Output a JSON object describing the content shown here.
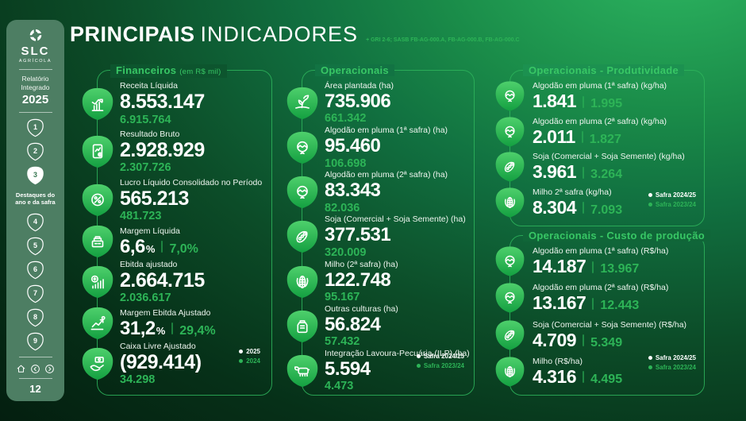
{
  "header": {
    "title_bold": "PRINCIPAIS",
    "title_light": "INDICADORES",
    "gri_ref": "+ GRI 2-6; SASB FB-AG-000.A, FB-AG-000.B, FB-AG-000.C"
  },
  "sidebar": {
    "logo_text": "SLC",
    "logo_sub": "AGRÍCOLA",
    "report_line1": "Relatório",
    "report_line2": "Integrado",
    "report_year": "2025",
    "chapters": [
      "1",
      "2",
      "3",
      "4",
      "5",
      "6",
      "7",
      "8",
      "9"
    ],
    "active_chapter": "3",
    "active_caption": "Destaques do ano e da safra",
    "page_number": "12"
  },
  "colors": {
    "accent_green": "#2db457",
    "title_green": "#38c765",
    "badge_green_top": "#4ed06c",
    "badge_green_bottom": "#14a041",
    "sidebar_green": "#4d7e63"
  },
  "sections": [
    {
      "id": "financeiros",
      "title": "Financeiros",
      "title_suffix": "(em R$ mil)",
      "legend": [
        {
          "label": "2025",
          "tone": "current"
        },
        {
          "label": "2024",
          "tone": "previous"
        }
      ],
      "items": [
        {
          "icon": "chart-growth-icon",
          "label": "Receita Líquida",
          "value": "8.553.147",
          "prev": "6.915.764",
          "layout": "stacked"
        },
        {
          "icon": "report-document-icon",
          "label": "Resultado Bruto",
          "value": "2.928.929",
          "prev": "2.307.726",
          "layout": "stacked"
        },
        {
          "icon": "profit-coin-icon",
          "label": "Lucro Líquido Consolidado no Período",
          "value": "565.213",
          "prev": "481.723",
          "layout": "stacked"
        },
        {
          "icon": "cash-register-icon",
          "label": "Margem Líquida",
          "value": "6,6",
          "suffix": "%",
          "prev": "7,0%",
          "layout": "inline"
        },
        {
          "icon": "coin-bars-icon",
          "label": "Ebitda ajustado",
          "value": "2.664.715",
          "prev": "2.036.617",
          "layout": "stacked"
        },
        {
          "icon": "growth-arrow-icon",
          "label": "Margem Ebitda Ajustado",
          "value": "31,2",
          "suffix": "%",
          "prev": "29,4%",
          "layout": "inline"
        },
        {
          "icon": "hand-money-icon",
          "label": "Caixa Livre Ajustado",
          "value": "(929.414)",
          "prev": "34.298",
          "layout": "stacked"
        }
      ]
    },
    {
      "id": "operacionais",
      "title": "Operacionais",
      "title_suffix": "",
      "legend": [
        {
          "label": "Safra 2024/25",
          "tone": "current"
        },
        {
          "label": "Safra 2023/24",
          "tone": "previous"
        }
      ],
      "items": [
        {
          "icon": "seedling-icon",
          "label": "Área plantada (ha)",
          "value": "735.906",
          "prev": "661.342",
          "layout": "stacked"
        },
        {
          "icon": "cotton-icon",
          "label": "Algodão em pluma (1ª safra) (ha)",
          "value": "95.460",
          "prev": "106.698",
          "layout": "stacked"
        },
        {
          "icon": "cotton-icon",
          "label": "Algodão em pluma (2ª safra) (ha)",
          "value": "83.343",
          "prev": "82.036",
          "layout": "stacked"
        },
        {
          "icon": "soybean-icon",
          "label": "Soja (Comercial + Soja Semente) (ha)",
          "value": "377.531",
          "prev": "320.009",
          "layout": "stacked"
        },
        {
          "icon": "corn-icon",
          "label": "Milho (2ª safra) (ha)",
          "value": "122.748",
          "prev": "95.167",
          "layout": "stacked"
        },
        {
          "icon": "sack-icon",
          "label": "Outras culturas (ha)",
          "value": "56.824",
          "prev": "57.432",
          "layout": "stacked"
        },
        {
          "icon": "cattle-icon",
          "label": "Integração Lavoura-Pecuária (ILP) (ha)",
          "value": "5.594",
          "prev": "4.473",
          "layout": "stacked"
        }
      ]
    },
    {
      "id": "produtividade",
      "title": "Operacionais - Produtividade",
      "title_suffix": "",
      "legend": [
        {
          "label": "Safra 2024/25",
          "tone": "current"
        },
        {
          "label": "Safra 2023/24",
          "tone": "previous"
        }
      ],
      "items": [
        {
          "icon": "cotton-icon",
          "label": "Algodão em pluma (1ª safra) (kg/ha)",
          "value": "1.841",
          "prev": "1.995",
          "layout": "inline"
        },
        {
          "icon": "cotton-icon",
          "label": "Algodão em pluma (2ª safra) (kg/ha)",
          "value": "2.011",
          "prev": "1.827",
          "layout": "inline"
        },
        {
          "icon": "soybean-icon",
          "label": "Soja (Comercial + Soja Semente) (kg/ha)",
          "value": "3.961",
          "prev": "3.264",
          "layout": "inline"
        },
        {
          "icon": "corn-icon",
          "label": "Milho 2ª safra (kg/ha)",
          "value": "8.304",
          "prev": "7.093",
          "layout": "inline"
        }
      ]
    },
    {
      "id": "custo",
      "title": "Operacionais - Custo de produção",
      "title_suffix": "",
      "legend": [
        {
          "label": "Safra 2024/25",
          "tone": "current"
        },
        {
          "label": "Safra 2023/24",
          "tone": "previous"
        }
      ],
      "items": [
        {
          "icon": "cotton-icon",
          "label": "Algodão em pluma (1ª safra) (R$/ha)",
          "value": "14.187",
          "prev": "13.967",
          "layout": "inline"
        },
        {
          "icon": "cotton-icon",
          "label": "Algodão em pluma (2ª safra) (R$/ha)",
          "value": "13.167",
          "prev": "12.443",
          "layout": "inline"
        },
        {
          "icon": "soybean-icon",
          "label": "Soja (Comercial + Soja Semente) (R$/ha)",
          "value": "4.709",
          "prev": "5.349",
          "layout": "inline"
        },
        {
          "icon": "corn-icon",
          "label": "Milho (R$/ha)",
          "value": "4.316",
          "prev": "4.495",
          "layout": "inline"
        }
      ]
    }
  ]
}
